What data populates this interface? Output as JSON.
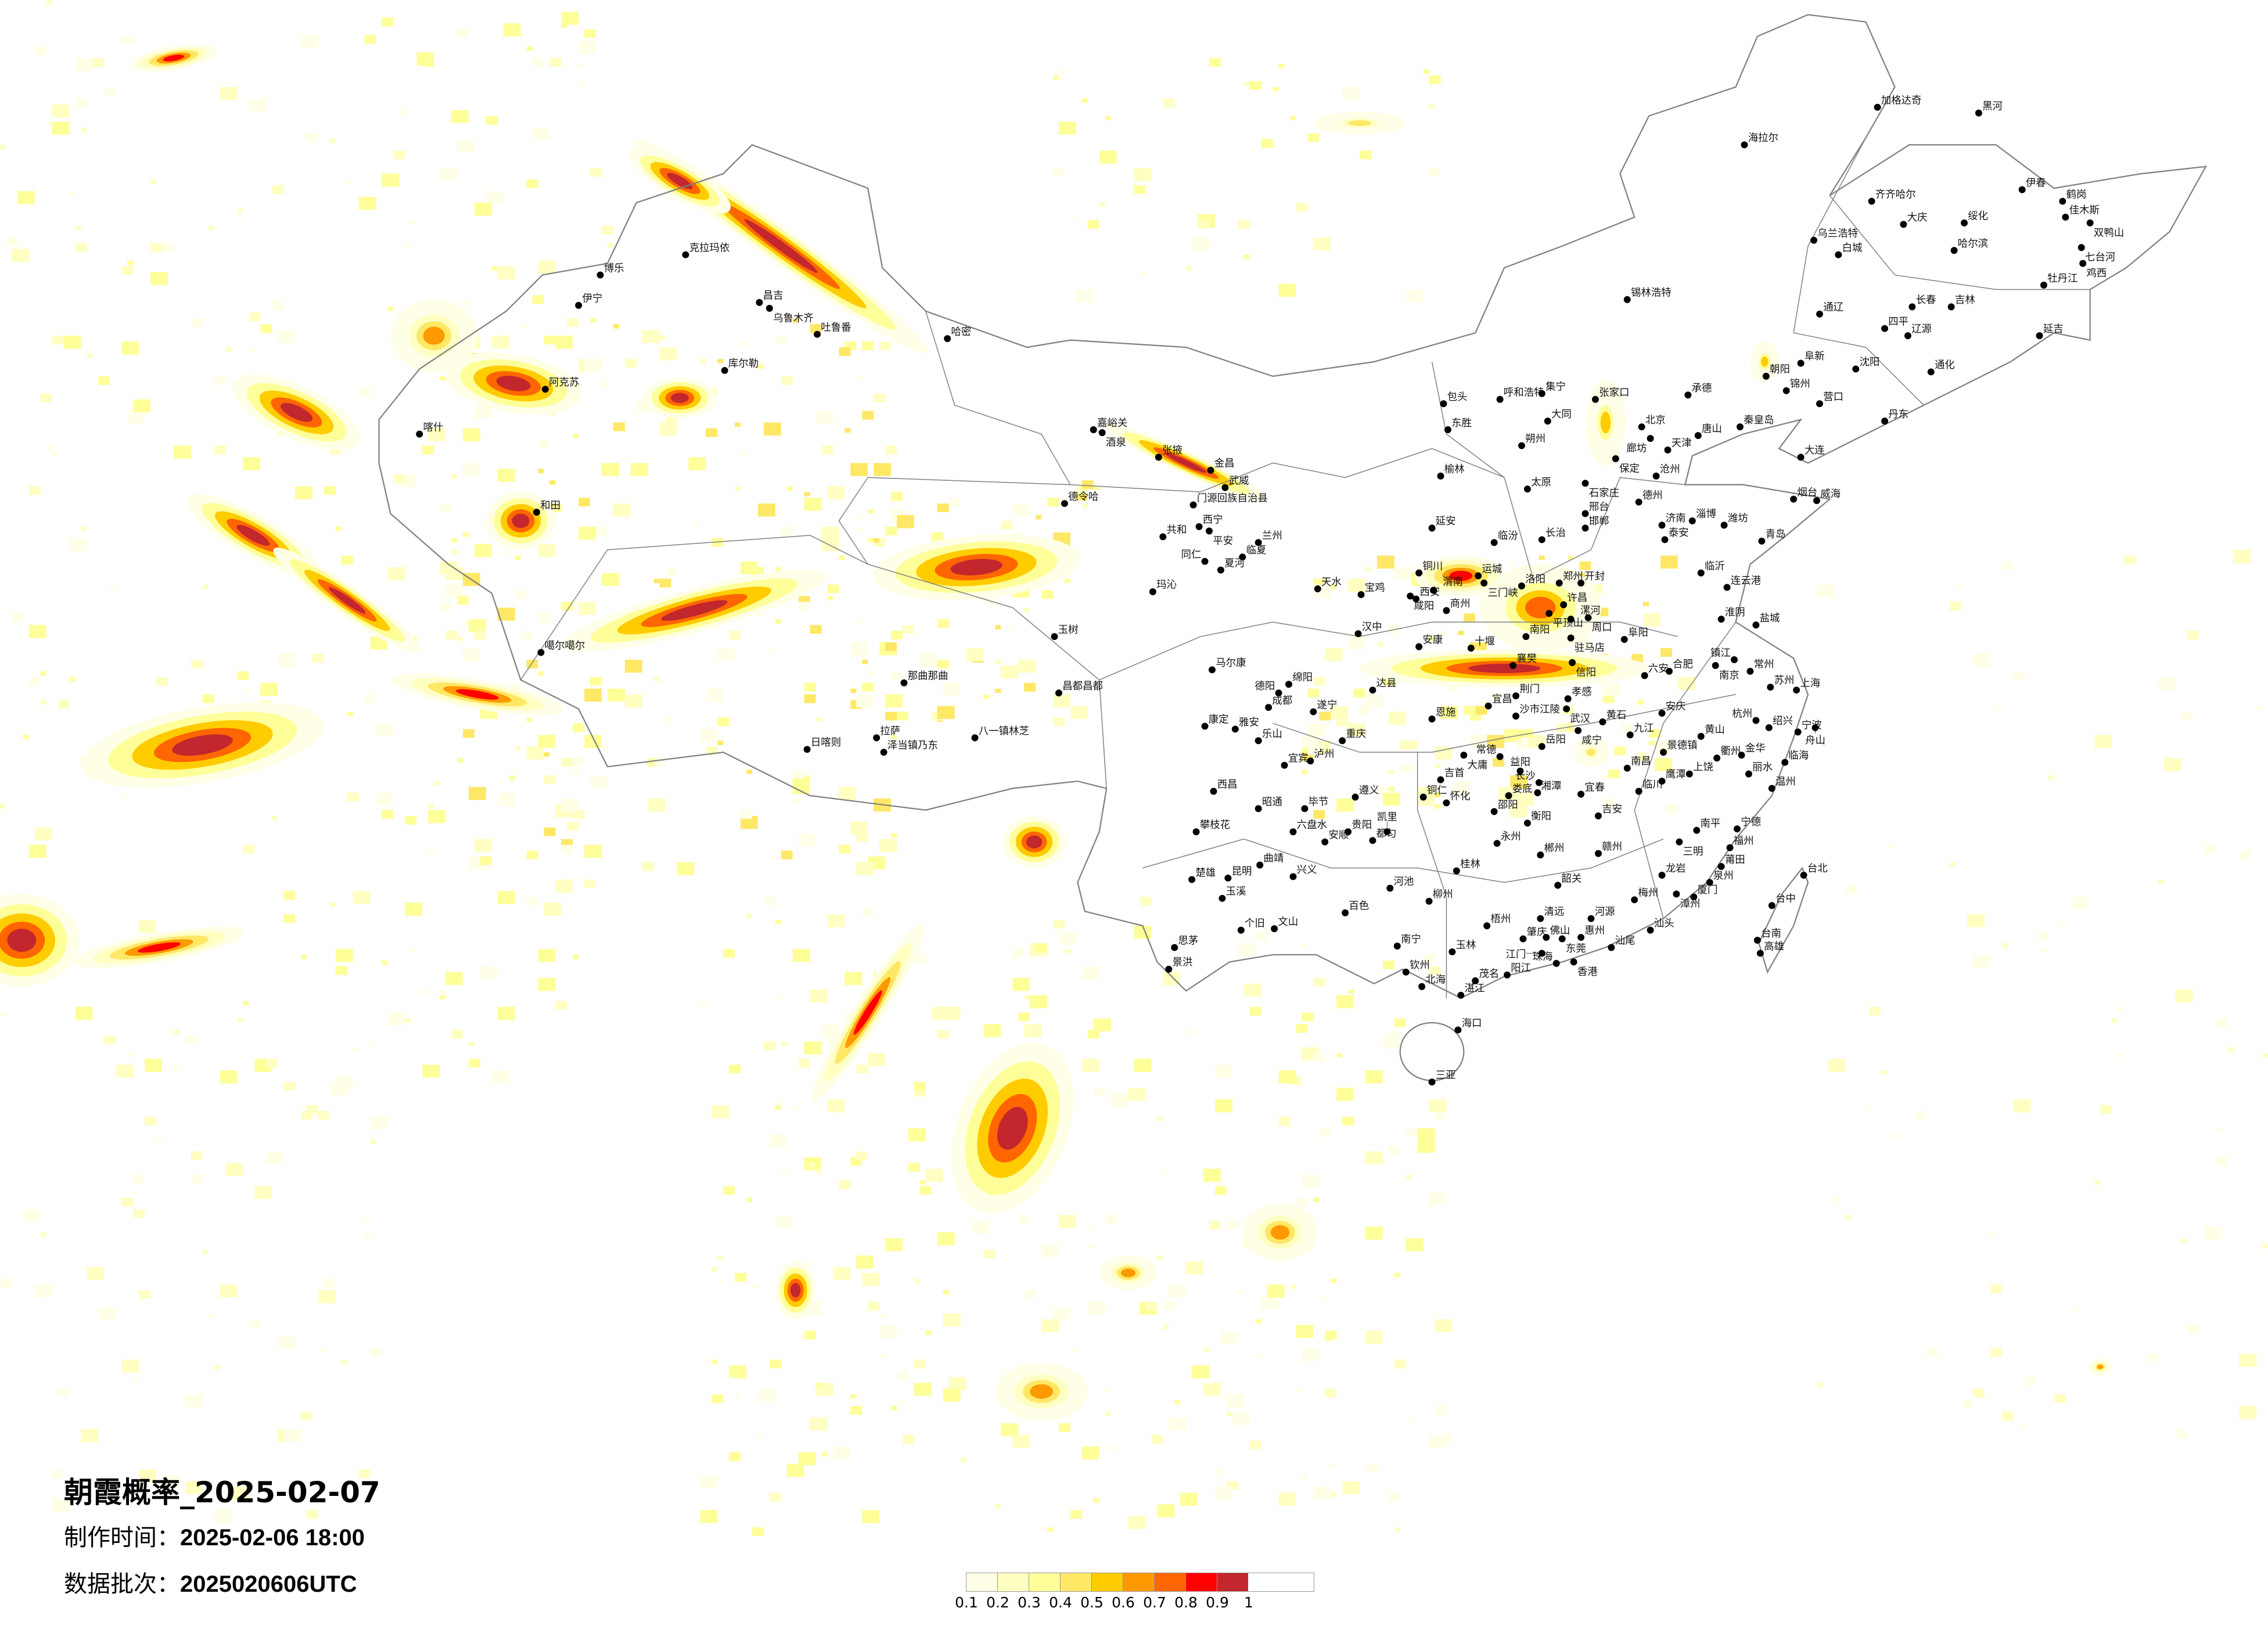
{
  "title": "朝霞概率_2025-02-07",
  "made_time": {
    "label": "制作时间：",
    "value": "2025-02-06 18:00"
  },
  "data_batch": {
    "label": "数据批次：",
    "value": "2025020606UTC"
  },
  "legend": {
    "ticks": [
      "0.1",
      "0.2",
      "0.3",
      "0.4",
      "0.5",
      "0.6",
      "0.7",
      "0.8",
      "0.9",
      "1"
    ],
    "colors": [
      "#FFFFE8",
      "#FFFFC2",
      "#FFFF99",
      "#FFE866",
      "#FFCC00",
      "#FF9900",
      "#FF6600",
      "#FF0000",
      "#C1272D"
    ]
  },
  "map": {
    "border_color": "#808080",
    "city_dot_color": "#000000"
  },
  "cities": [
    "克拉玛依",
    "博乐",
    "伊宁",
    "昌吉",
    "乌鲁木齐",
    "吐鲁番",
    "哈密",
    "库尔勒",
    "阿克苏",
    "喀什",
    "和田",
    "噶尔噶尔",
    "日喀则",
    "拉萨",
    "泽当镇乃东",
    "八一镇林芝",
    "那曲那曲",
    "昌都昌都",
    "玉树",
    "德令哈",
    "嘉峪关",
    "酒泉",
    "张掖",
    "金昌",
    "武威",
    "门源回族自治县",
    "西宁",
    "平安",
    "共和",
    "玛沁",
    "兰州",
    "临夏",
    "夏河",
    "同仁",
    "马尔康",
    "康定",
    "雅安",
    "乐山",
    "成都",
    "绵阳",
    "德阳",
    "达县",
    "遂宁",
    "重庆",
    "宜宾",
    "泸州",
    "西昌",
    "攀枝花",
    "昭通",
    "毕节",
    "遵义",
    "六盘水",
    "贵阳",
    "安顺",
    "都匀",
    "凯里",
    "昆明",
    "曲靖",
    "楚雄",
    "玉溪",
    "个旧",
    "文山",
    "思茅",
    "景洪",
    "兴义",
    "百色",
    "河池",
    "柳州",
    "桂林",
    "南宁",
    "玉林",
    "梧州",
    "钦州",
    "北海",
    "湛江",
    "茂名",
    "阳江",
    "海口",
    "三亚",
    "佛山",
    "肇庆",
    "东莞",
    "惠州",
    "香港",
    "珠海",
    "江门",
    "清远",
    "河源",
    "韶关",
    "汕尾",
    "汕头",
    "梅州",
    "厦门",
    "漳州",
    "泉州",
    "莆田",
    "福州",
    "宁德",
    "南平",
    "三明",
    "龙岩",
    "赣州",
    "郴州",
    "永州",
    "衡阳",
    "邵阳",
    "娄底",
    "湘潭",
    "长沙",
    "益阳",
    "常德",
    "大庸",
    "吉首",
    "怀化",
    "铜仁",
    "南昌",
    "景德镇",
    "鹰潭",
    "上饶",
    "临川",
    "宜春",
    "吉安",
    "衢州",
    "金华",
    "丽水",
    "温州",
    "临海",
    "宁波",
    "舟山",
    "绍兴",
    "杭州",
    "黄山",
    "安庆",
    "上海",
    "苏州",
    "常州",
    "镇江",
    "南京",
    "合肥",
    "六安",
    "盐城",
    "淮阴",
    "连云港",
    "临沂",
    "青岛",
    "泰安",
    "济南",
    "淄博",
    "潍坊",
    "烟台",
    "威海",
    "德州",
    "沧州",
    "天津",
    "北京",
    "廊坊",
    "唐山",
    "秦皇岛",
    "承德",
    "张家口",
    "保定",
    "石家庄",
    "邢台",
    "邯郸",
    "太原",
    "大同",
    "朔州",
    "长治",
    "临汾",
    "呼和浩特",
    "集宁",
    "包头",
    "东胜",
    "榆林",
    "延安",
    "铜川",
    "西安",
    "咸阳",
    "渭南",
    "宝鸡",
    "天水",
    "汉中",
    "安康",
    "十堰",
    "商州",
    "运城",
    "三门峡",
    "洛阳",
    "郑州",
    "开封",
    "许昌",
    "平顶山",
    "漯河",
    "周口",
    "南阳",
    "驻马店",
    "阜阳",
    "襄樊",
    "信阳",
    "荆门",
    "宜昌",
    "孝感",
    "武汉",
    "沙市江陵",
    "黄石",
    "咸宁",
    "九江",
    "岳阳",
    "恩施",
    "锦州",
    "大连",
    "丹东",
    "沈阳",
    "营口",
    "朝阳",
    "阜新",
    "加格达奇",
    "黑河",
    "海拉尔",
    "齐齐哈尔",
    "大庆",
    "绥化",
    "哈尔滨",
    "伊春",
    "鹤岗",
    "佳木斯",
    "双鸭山",
    "七台河",
    "鸡西",
    "牡丹江",
    "长春",
    "吉林",
    "乌兰浩特",
    "白城",
    "通辽",
    "四平",
    "辽源",
    "延吉",
    "通化",
    "锡林浩特",
    "台北",
    "台中",
    "台南",
    "高雄"
  ]
}
